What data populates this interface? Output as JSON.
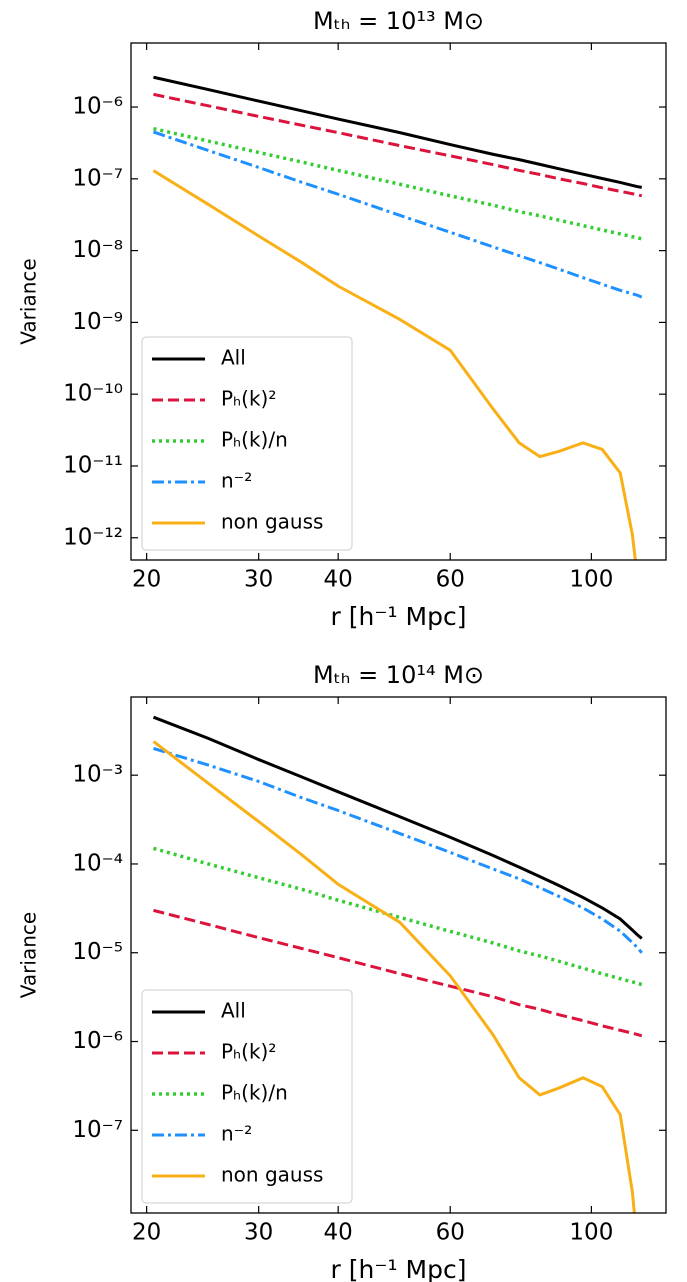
{
  "chart_data": [
    {
      "type": "line",
      "title": "Mₜₕ = 10¹³ M⊙",
      "xlabel": "r [h⁻¹ Mpc]",
      "ylabel": "Variance",
      "xscale": "log",
      "yscale": "log",
      "legend": "lower left",
      "xlim": [
        18.9,
        131
      ],
      "ylim": [
        7.8e-06,
        4.9e-13
      ],
      "xticks": [
        20,
        30,
        40,
        60,
        100
      ],
      "yticks": [
        {
          "value": 1e-12,
          "label": "10⁻¹²"
        },
        {
          "value": 1e-11,
          "label": "10⁻¹¹"
        },
        {
          "value": 1e-10,
          "label": "10⁻¹⁰"
        },
        {
          "value": 1e-09,
          "label": "10⁻⁹"
        },
        {
          "value": 1e-08,
          "label": "10⁻⁸"
        },
        {
          "value": 1e-07,
          "label": "10⁻⁷"
        },
        {
          "value": 1e-06,
          "label": "10⁻⁶"
        }
      ],
      "x": [
        20.5,
        25,
        30,
        35,
        40,
        50,
        60,
        70,
        77,
        83,
        89,
        97,
        104,
        111,
        116,
        118,
        120
      ],
      "series": [
        {
          "name": "All",
          "color": "#000000",
          "linestyle": "solid",
          "values": [
            2.6e-06,
            1.75e-06,
            1.21e-06,
            8.9e-07,
            6.8e-07,
            4.4e-07,
            3e-07,
            2.2e-07,
            1.85e-07,
            1.59e-07,
            1.38e-07,
            1.16e-07,
            1.01e-07,
            8.9e-08,
            8.1e-08,
            7.8e-08,
            7.6e-08
          ]
        },
        {
          "name": "Pₕ(k)²",
          "color": "#dc143c",
          "linestyle": "dashed",
          "values": [
            1.5e-06,
            1.04e-06,
            7.4e-07,
            5.6e-07,
            4.4e-07,
            2.9e-07,
            2.09e-07,
            1.58e-07,
            1.31e-07,
            1.15e-07,
            1e-07,
            8.6e-08,
            7.5e-08,
            6.7e-08,
            6.2e-08,
            6e-08,
            5.8e-08
          ]
        },
        {
          "name": "Pₕ(k)/n",
          "color": "#32cd32",
          "linestyle": "dotted",
          "values": [
            5e-07,
            3.36e-07,
            2.33e-07,
            1.72e-07,
            1.31e-07,
            8.4e-08,
            5.8e-08,
            4.3e-08,
            3.5e-08,
            3.05e-08,
            2.65e-08,
            2.23e-08,
            1.94e-08,
            1.71e-08,
            1.56e-08,
            1.51e-08,
            1.46e-08
          ]
        },
        {
          "name": "n⁻²",
          "color": "#1e90ff",
          "linestyle": "dashdot",
          "values": [
            4.5e-07,
            2.48e-07,
            1.44e-07,
            9e-08,
            6.1e-08,
            3.1e-08,
            1.8e-08,
            1.13e-08,
            8.5e-09,
            6.8e-09,
            5.5e-09,
            4.2e-09,
            3.4e-09,
            2.8e-09,
            2.5e-09,
            2.4e-09,
            2.25e-09
          ]
        },
        {
          "name": "non gauss",
          "color": "#f8b016",
          "linestyle": "solid",
          "values": [
            1.3e-07,
            4.4e-08,
            1.6e-08,
            6.9e-09,
            3.2e-09,
            1.1e-09,
            4.1e-10,
            6.3e-11,
            2.1e-11,
            1.35e-11,
            1.6e-11,
            2.1e-11,
            1.7e-11,
            8e-12,
            1.1e-12,
            3e-13,
            null
          ]
        }
      ]
    },
    {
      "type": "line",
      "title": "Mₜₕ = 10¹⁴ M⊙",
      "xlabel": "r [h⁻¹ Mpc]",
      "ylabel": "Variance",
      "xscale": "log",
      "yscale": "log",
      "legend": "lower left",
      "xlim": [
        18.9,
        131
      ],
      "ylim": [
        0.0076,
        1.17e-08
      ],
      "xticks": [
        20,
        30,
        40,
        60,
        100
      ],
      "yticks": [
        {
          "value": 1e-07,
          "label": "10⁻⁷"
        },
        {
          "value": 1e-06,
          "label": "10⁻⁶"
        },
        {
          "value": 1e-05,
          "label": "10⁻⁵"
        },
        {
          "value": 0.0001,
          "label": "10⁻⁴"
        },
        {
          "value": 0.001,
          "label": "10⁻³"
        }
      ],
      "x": [
        20.5,
        25,
        30,
        35,
        40,
        50,
        60,
        70,
        77,
        83,
        89,
        97,
        104,
        111,
        116,
        118,
        120
      ],
      "series": [
        {
          "name": "All",
          "color": "#000000",
          "linestyle": "solid",
          "values": [
            0.0045,
            0.0026,
            0.0015,
            0.00096,
            0.00065,
            0.00034,
            0.0002,
            0.000125,
            9.2e-05,
            7.2e-05,
            5.7e-05,
            4.2e-05,
            3.2e-05,
            2.4e-05,
            1.8e-05,
            1.6e-05,
            1.45e-05
          ]
        },
        {
          "name": "Pₕ(k)²",
          "color": "#dc143c",
          "linestyle": "dashed",
          "values": [
            3e-05,
            2.08e-05,
            1.48e-05,
            1.12e-05,
            8.8e-06,
            5.8e-06,
            4.2e-06,
            3.2e-06,
            2.6e-06,
            2.3e-06,
            2e-06,
            1.72e-06,
            1.5e-06,
            1.34e-06,
            1.24e-06,
            1.2e-06,
            1.16e-06
          ]
        },
        {
          "name": "Pₕ(k)/n",
          "color": "#32cd32",
          "linestyle": "dotted",
          "values": [
            0.00015,
            0.0001,
            7e-05,
            5.2e-05,
            3.9e-05,
            2.5e-05,
            1.74e-05,
            1.29e-05,
            1.05e-05,
            9.2e-06,
            8e-06,
            6.7e-06,
            5.8e-06,
            5.1e-06,
            4.7e-06,
            4.5e-06,
            4.4e-06
          ]
        },
        {
          "name": "n⁻²",
          "color": "#1e90ff",
          "linestyle": "dashdot",
          "values": [
            0.002,
            0.0013,
            0.00085,
            0.00056,
            0.0004,
            0.00022,
            0.000135,
            8.8e-05,
            6.8e-05,
            5.4e-05,
            4.3e-05,
            3.2e-05,
            2.4e-05,
            1.75e-05,
            1.3e-05,
            1.15e-05,
            1e-05
          ]
        },
        {
          "name": "non gauss",
          "color": "#f8b016",
          "linestyle": "solid",
          "values": [
            0.0024,
            0.00081,
            0.0003,
            0.000128,
            5.9e-05,
            2.2e-05,
            5.5e-06,
            1.2e-06,
            3.9e-07,
            2.5e-07,
            3e-07,
            3.9e-07,
            3.1e-07,
            1.5e-07,
            2e-08,
            5.5e-09,
            null
          ]
        }
      ]
    }
  ]
}
